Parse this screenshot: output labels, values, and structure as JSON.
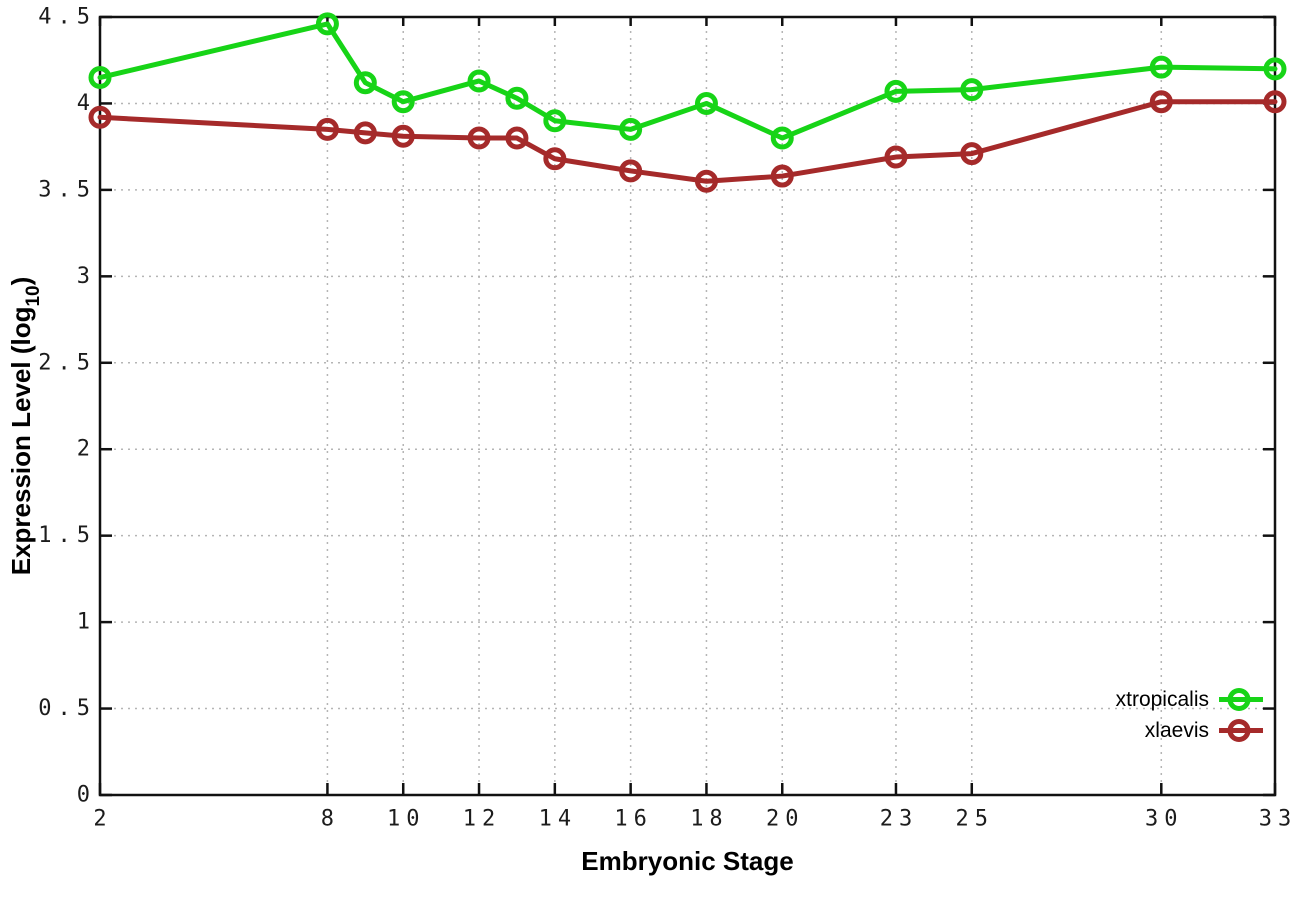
{
  "chart_data": {
    "type": "line",
    "title": "",
    "xlabel": "Embryonic Stage",
    "ylabel": "Expression Level (log10)",
    "x": [
      2,
      8,
      9,
      10,
      12,
      13,
      14,
      16,
      18,
      20,
      23,
      25,
      30,
      33
    ],
    "x_ticks": [
      2,
      8,
      10,
      12,
      14,
      16,
      18,
      20,
      23,
      25,
      30,
      33
    ],
    "y_ticks": [
      0,
      0.5,
      1,
      1.5,
      2,
      2.5,
      3,
      3.5,
      4,
      4.5
    ],
    "xlim": [
      2,
      33
    ],
    "ylim": [
      0,
      4.5
    ],
    "grid": true,
    "legend_position": "bottom-right",
    "series": [
      {
        "name": "xtropicalis",
        "color": "#17d417",
        "values": [
          4.15,
          4.46,
          4.12,
          4.01,
          4.13,
          4.03,
          3.9,
          3.85,
          4.0,
          3.8,
          4.07,
          4.08,
          4.21,
          4.2
        ]
      },
      {
        "name": "xlaevis",
        "color": "#a52a2a",
        "values": [
          3.92,
          3.85,
          3.83,
          3.81,
          3.8,
          3.8,
          3.68,
          3.61,
          3.55,
          3.58,
          3.69,
          3.71,
          4.01,
          4.01
        ]
      }
    ]
  },
  "labels": {
    "xlabel": "Embryonic Stage",
    "ylabel_main": "Expression Level (log",
    "ylabel_sub": "10",
    "ylabel_end": ")"
  },
  "style": {
    "border_color": "#111111",
    "grid_color": "#b5b5b5",
    "tick_label_color": "#1c1c1c"
  }
}
